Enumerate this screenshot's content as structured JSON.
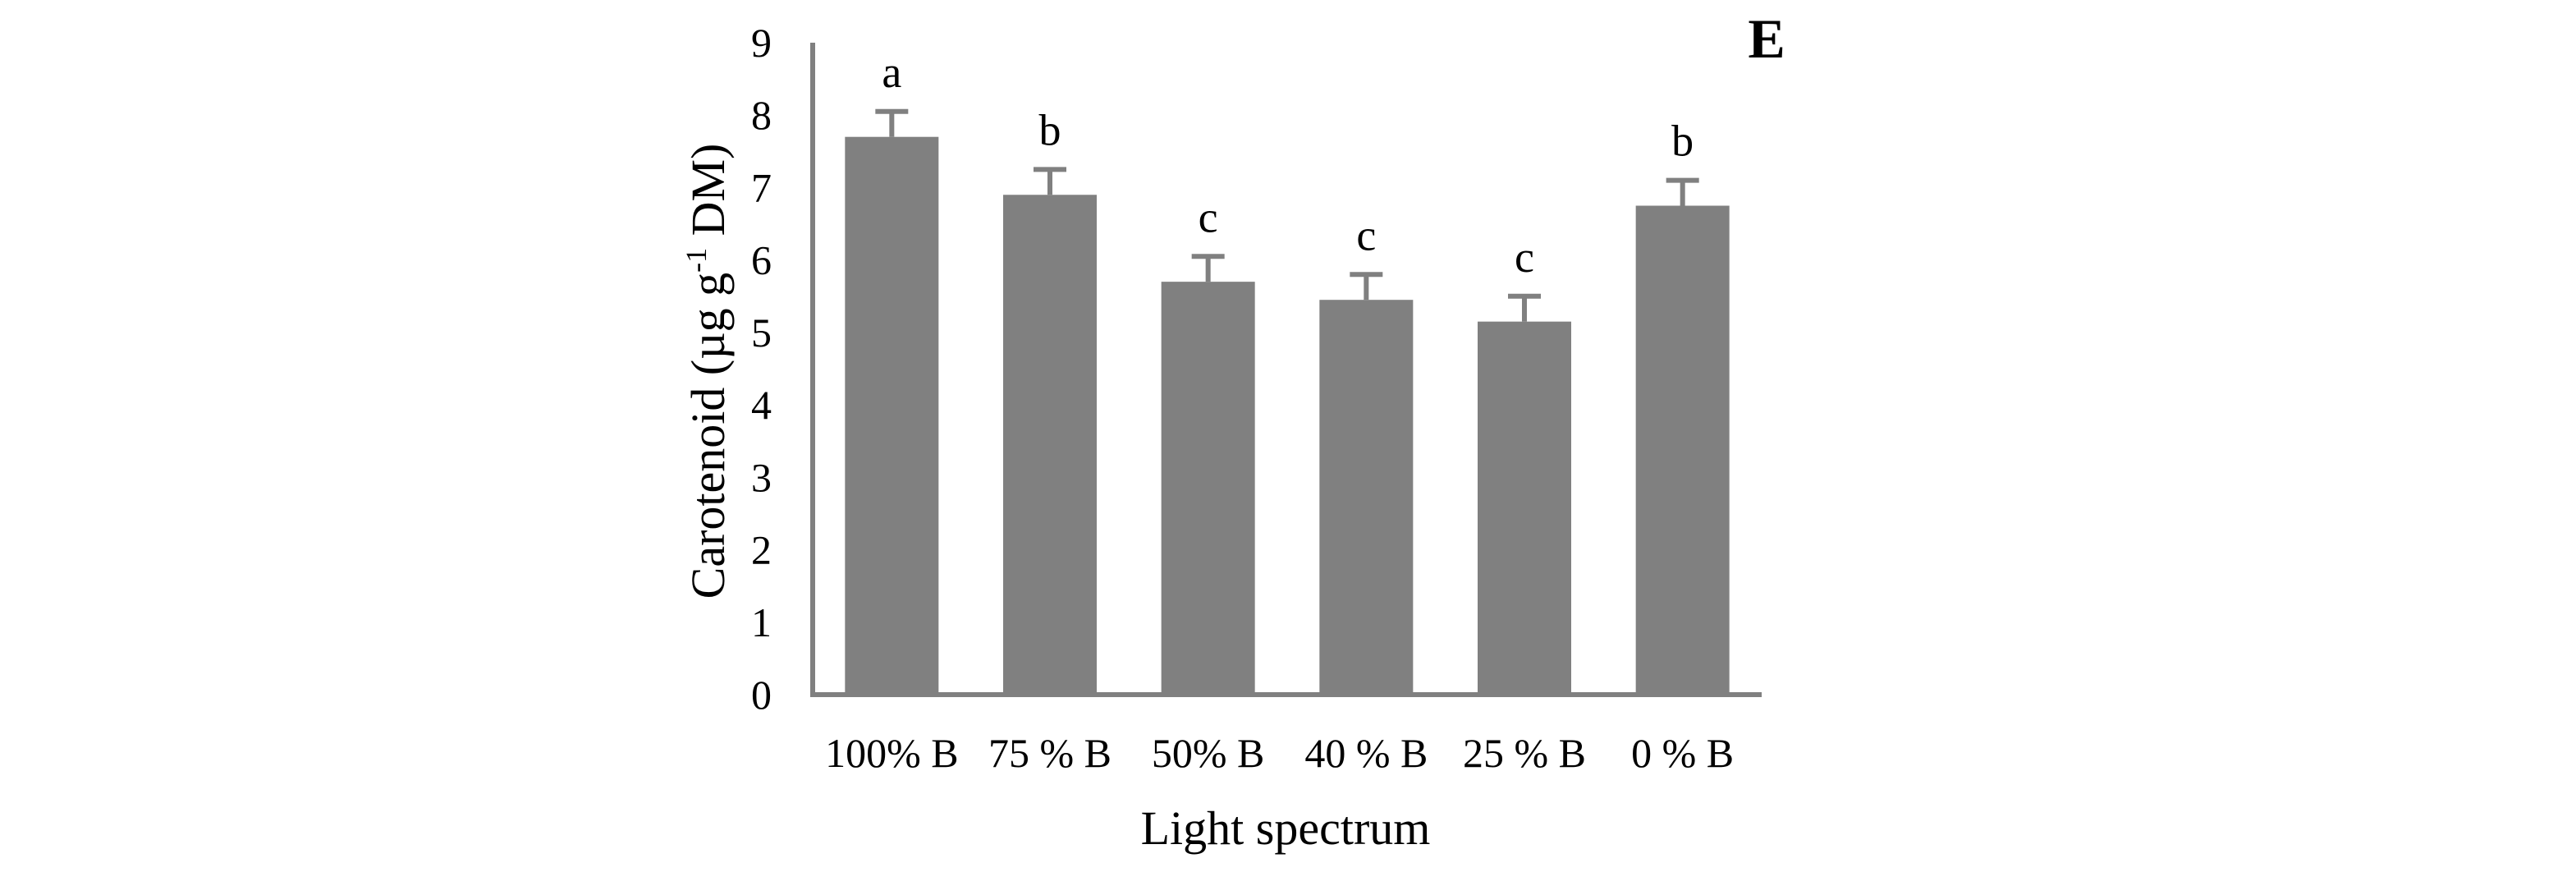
{
  "panel_label": "E",
  "chart_data": {
    "type": "bar",
    "title": "",
    "xlabel": "Light spectrum",
    "ylabel": "Carotenoid  (µg g-1 DM)",
    "ylabel_parts": {
      "before": "Carotenoid  (µg g",
      "superscript": "-1",
      "after": " DM)"
    },
    "ylim": [
      0,
      9
    ],
    "yticks": [
      0,
      1,
      2,
      3,
      4,
      5,
      6,
      7,
      8,
      9
    ],
    "grid": false,
    "legend": "none",
    "bar_color": "#808080",
    "axis_color": "#808080",
    "categories": [
      "100% B",
      "75 % B",
      "50% B",
      "40 % B",
      "25 % B",
      "0 % B"
    ],
    "values": [
      7.7,
      6.9,
      5.7,
      5.45,
      5.15,
      6.75
    ],
    "errors": [
      0.35,
      0.35,
      0.35,
      0.35,
      0.35,
      0.35
    ],
    "significance_letters": [
      "a",
      "b",
      "c",
      "c",
      "c",
      "b"
    ]
  }
}
